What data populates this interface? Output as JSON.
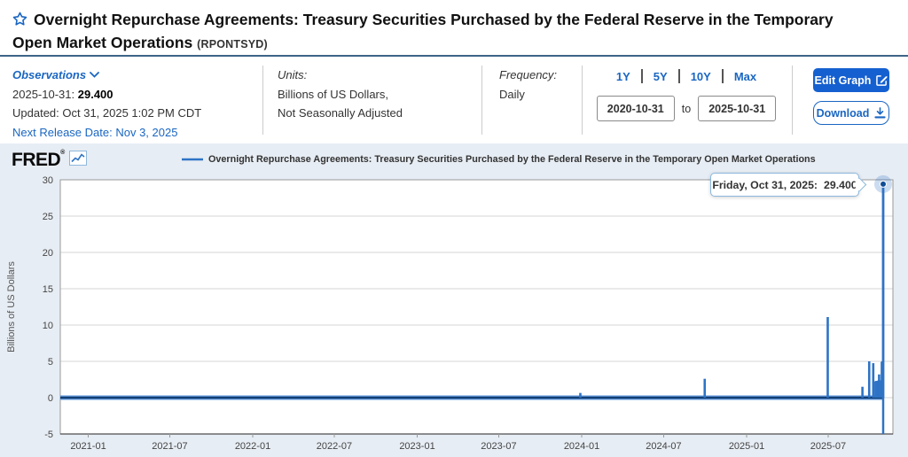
{
  "header": {
    "title": "Overnight Repurchase Agreements: Treasury Securities Purchased by the Federal Reserve in the Temporary Open Market Operations",
    "series_id": "(RPONTSYD)"
  },
  "meta": {
    "observations": {
      "label": "Observations",
      "date": "2025-10-31:",
      "value": "29.400",
      "updated": "Updated: Oct 31, 2025 1:02 PM CDT",
      "next_release": "Next Release Date: Nov 3, 2025"
    },
    "units": {
      "label": "Units:",
      "line1": "Billions of US Dollars,",
      "line2": "Not Seasonally Adjusted"
    },
    "frequency": {
      "label": "Frequency:",
      "value": "Daily"
    },
    "range": {
      "presets": [
        "1Y",
        "5Y",
        "10Y",
        "Max"
      ],
      "start": "2020-10-31",
      "to": "to",
      "end": "2025-10-31"
    },
    "actions": {
      "edit": "Edit Graph",
      "download": "Download"
    }
  },
  "chart": {
    "brand": "FRED",
    "legend": "Overnight Repurchase Agreements: Treasury Securities Purchased by the Federal Reserve in the Temporary Open Market Operations",
    "tooltip_date": "Friday, Oct 31, 2025:",
    "tooltip_value": "29.400"
  },
  "chart_data": {
    "type": "line",
    "title": "Overnight Repurchase Agreements: Treasury Securities Purchased by the Federal Reserve in the Temporary Open Market Operations",
    "ylabel": "Billions of US Dollars",
    "xlabel": "",
    "ylim": [
      -5,
      30
    ],
    "yticks": [
      30,
      25,
      20,
      15,
      10,
      5,
      0,
      -5
    ],
    "xticks": [
      "2021-01",
      "2021-07",
      "2022-01",
      "2022-07",
      "2023-01",
      "2023-07",
      "2024-01",
      "2024-07",
      "2025-01",
      "2025-07"
    ],
    "x_range": [
      "2020-10-31",
      "2025-10-31"
    ],
    "grid": true,
    "legend_position": "top",
    "baseline_value": 0,
    "spikes": [
      [
        "2023-12-29",
        0.65
      ],
      [
        "2024-09-30",
        2.6
      ],
      [
        "2025-06-30",
        11.1
      ],
      [
        "2025-09-15",
        1.5
      ],
      [
        "2025-09-30",
        5.0
      ],
      [
        "2025-10-09",
        4.75
      ],
      [
        "2025-10-14",
        2.2
      ],
      [
        "2025-10-15",
        2.3
      ],
      [
        "2025-10-16",
        2.25
      ],
      [
        "2025-10-17",
        2.3
      ],
      [
        "2025-10-20",
        2.3
      ],
      [
        "2025-10-21",
        2.4
      ],
      [
        "2025-10-22",
        3.2
      ],
      [
        "2025-10-23",
        2.3
      ],
      [
        "2025-10-24",
        2.35
      ],
      [
        "2025-10-27",
        2.4
      ],
      [
        "2025-10-28",
        4.9
      ],
      [
        "2025-10-29",
        5.0
      ],
      [
        "2025-10-30",
        4.85
      ],
      [
        "2025-10-31",
        29.4
      ]
    ],
    "last_point": {
      "date": "2025-10-31",
      "value": 29.4
    },
    "line_color": "#2e73c5",
    "line_core_color": "#123e73",
    "line_fringe_color": "#5d93d6",
    "grid_color": "#d6d6d6",
    "axis_text_color": "#444"
  }
}
